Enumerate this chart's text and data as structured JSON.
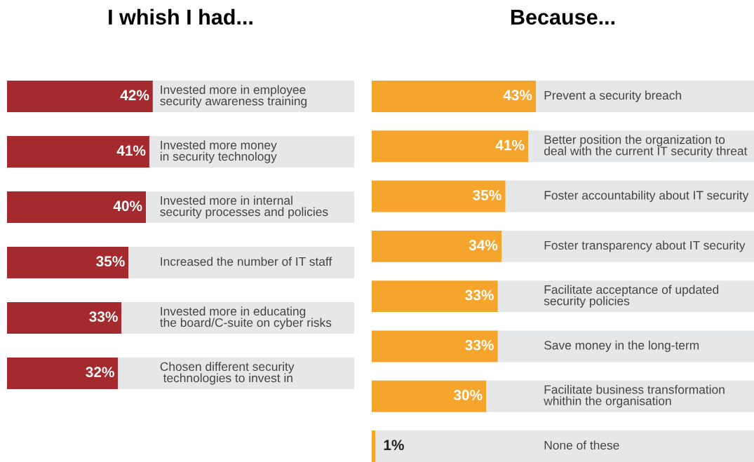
{
  "chart_data": [
    {
      "type": "bar",
      "orientation": "horizontal",
      "stacked": true,
      "title": "I whish I had...",
      "categories": [
        "Invested more in employee\nsecurity awareness training",
        "Invested more money\nin security technology",
        "Invested more in internal\nsecurity processes and policies",
        "Increased the number of IT staff",
        "Invested more in educating\nthe board/C-suite on cyber risks",
        "Chosen different security\n technologies to invest in"
      ],
      "xlim": [
        0,
        100
      ],
      "series": [
        {
          "color": "#a52a2d",
          "values": [
            42,
            41,
            40,
            35,
            33,
            32
          ],
          "value_labels": [
            "42%",
            "41%",
            "40%",
            "35%",
            "33%",
            "32%"
          ]
        },
        {
          "color": "#e6e7e8",
          "values": [
            58,
            59,
            60,
            65,
            67,
            68
          ]
        }
      ]
    },
    {
      "type": "bar",
      "orientation": "horizontal",
      "stacked": true,
      "title": "Because...",
      "categories": [
        "Prevent a security breach",
        "Better position the organization to\ndeal with the current IT security threat",
        "Foster accountability about IT security",
        "Foster transparency about IT security",
        "Facilitate acceptance of updated\nsecurity policies",
        "Save money in the long-term",
        "Facilitate business transformation\nwhithin the organisation",
        "None of these"
      ],
      "xlim": [
        0,
        100
      ],
      "series": [
        {
          "color": "#f6a52c",
          "values": [
            43,
            41,
            35,
            34,
            33,
            33,
            30,
            1
          ],
          "value_labels": [
            "43%",
            "41%",
            "35%",
            "34%",
            "33%",
            "33%",
            "30%",
            "1%"
          ]
        },
        {
          "color": "#e6e7e8",
          "values": [
            57,
            59,
            65,
            66,
            67,
            67,
            70,
            99
          ]
        }
      ]
    }
  ]
}
